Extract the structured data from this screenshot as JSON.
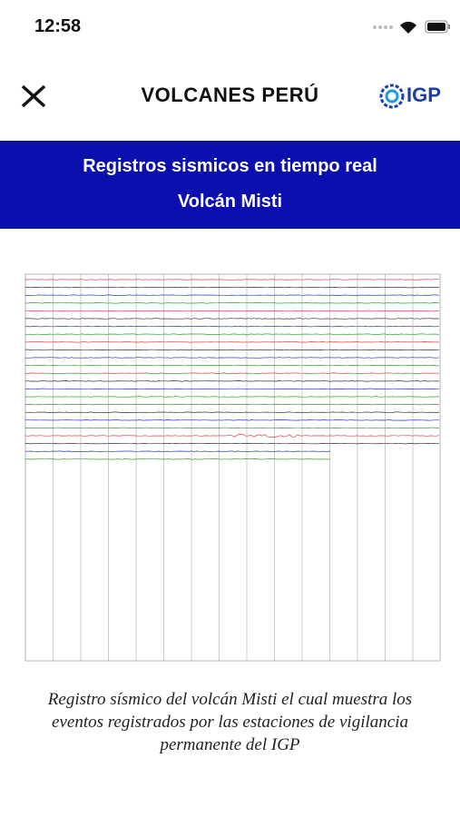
{
  "status_bar": {
    "time": "12:58"
  },
  "header": {
    "title": "VOLCANES PERÚ",
    "logo": "IGP"
  },
  "banner": {
    "line1": "Registros sismicos en tiempo real",
    "line2": "Volcán Misti"
  },
  "caption": {
    "lines": [
      "Registro sísmico del volcán Misti el cual muestra los",
      "eventos registrados por las estaciones de vigilancia",
      "permanente del IGP"
    ]
  }
}
